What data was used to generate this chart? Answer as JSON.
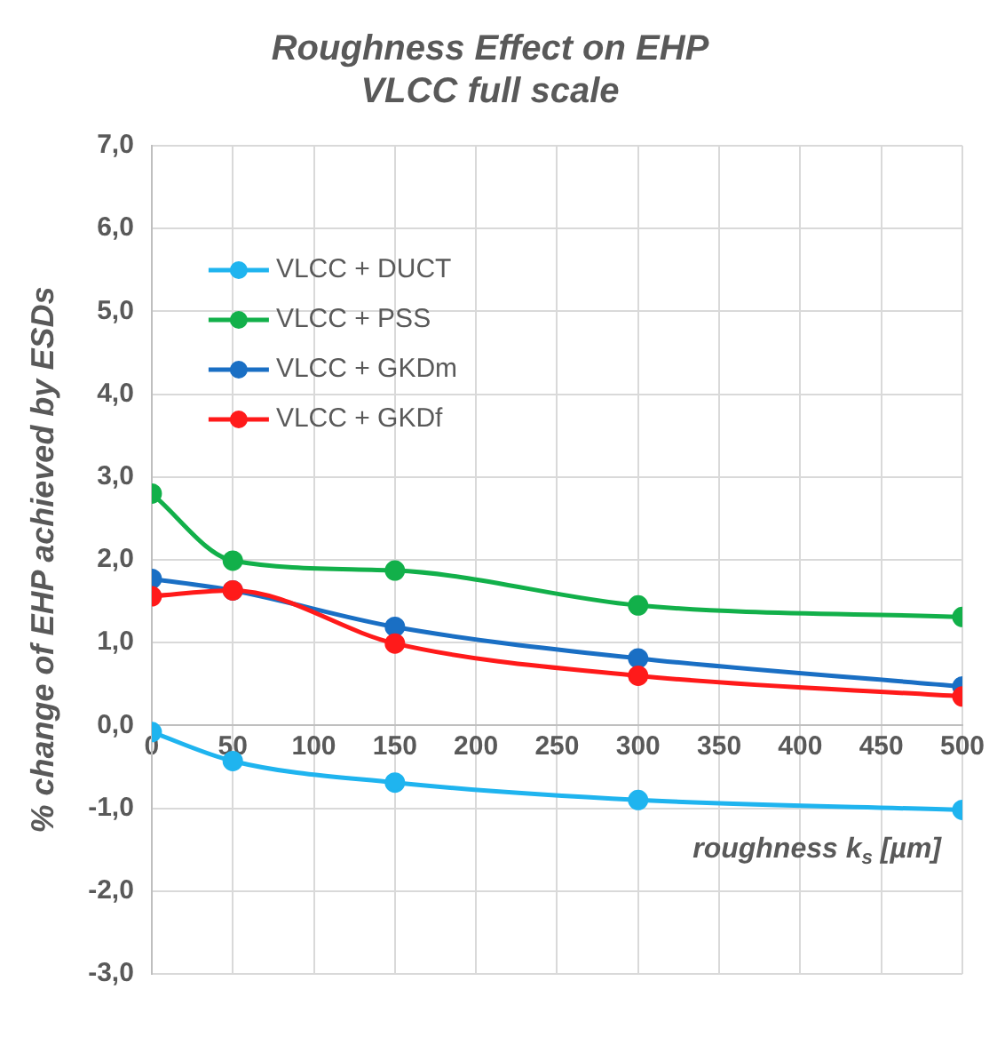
{
  "chart_data": {
    "type": "line",
    "title": [
      "Roughness Effect on EHP",
      "VLCC full scale"
    ],
    "xlabel": "roughness k$_{s}$ [µm]",
    "ylabel": "% change of EHP achieved by ESDs",
    "x": [
      0,
      50,
      150,
      300,
      500
    ],
    "series": [
      {
        "name": "VLCC + DUCT",
        "color": "#1fb4ef",
        "values": [
          -0.08,
          -0.43,
          -0.69,
          -0.9,
          -1.02
        ]
      },
      {
        "name": "VLCC + PSS",
        "color": "#12b04a",
        "values": [
          2.8,
          1.99,
          1.87,
          1.45,
          1.31
        ]
      },
      {
        "name": "VLCC + GKDm",
        "color": "#1a6fc4",
        "values": [
          1.77,
          1.63,
          1.19,
          0.81,
          0.47
        ]
      },
      {
        "name": "VLCC + GKDf",
        "color": "#ff1a1a",
        "values": [
          1.56,
          1.63,
          0.99,
          0.6,
          0.35
        ]
      }
    ],
    "xlim": [
      0,
      500
    ],
    "xticks": [
      0,
      50,
      100,
      150,
      200,
      250,
      300,
      350,
      400,
      450,
      500
    ],
    "ylim": [
      -3,
      7
    ],
    "yticks": [
      {
        "value": -3,
        "label": "-3,0"
      },
      {
        "value": -2,
        "label": "-2,0"
      },
      {
        "value": -1,
        "label": "-1,0"
      },
      {
        "value": 0,
        "label": "0,0"
      },
      {
        "value": 1,
        "label": "1,0"
      },
      {
        "value": 2,
        "label": "2,0"
      },
      {
        "value": 3,
        "label": "3,0"
      },
      {
        "value": 4,
        "label": "4,0"
      },
      {
        "value": 5,
        "label": "5,0"
      },
      {
        "value": 6,
        "label": "6,0"
      },
      {
        "value": 7,
        "label": "7,0"
      }
    ],
    "grid": true,
    "legend": "top left",
    "marker": "circle",
    "line_style": "solid"
  }
}
